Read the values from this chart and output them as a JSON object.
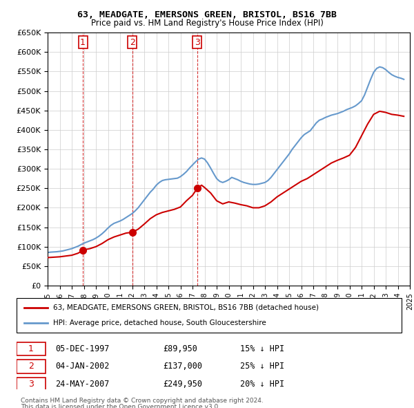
{
  "title": "63, MEADGATE, EMERSONS GREEN, BRISTOL, BS16 7BB",
  "subtitle": "Price paid vs. HM Land Registry's House Price Index (HPI)",
  "legend_line1": "63, MEADGATE, EMERSONS GREEN, BRISTOL, BS16 7BB (detached house)",
  "legend_line2": "HPI: Average price, detached house, South Gloucestershire",
  "footer1": "Contains HM Land Registry data © Crown copyright and database right 2024.",
  "footer2": "This data is licensed under the Open Government Licence v3.0.",
  "transactions": [
    {
      "num": 1,
      "date": "05-DEC-1997",
      "price": 89950,
      "pct": "15%",
      "year": 1997.92
    },
    {
      "num": 2,
      "date": "04-JAN-2002",
      "price": 137000,
      "pct": "25%",
      "year": 2002.01
    },
    {
      "num": 3,
      "date": "24-MAY-2007",
      "price": 249950,
      "pct": "20%",
      "year": 2007.39
    }
  ],
  "hpi_years": [
    1995.0,
    1995.25,
    1995.5,
    1995.75,
    1996.0,
    1996.25,
    1996.5,
    1996.75,
    1997.0,
    1997.25,
    1997.5,
    1997.75,
    1998.0,
    1998.25,
    1998.5,
    1998.75,
    1999.0,
    1999.25,
    1999.5,
    1999.75,
    2000.0,
    2000.25,
    2000.5,
    2000.75,
    2001.0,
    2001.25,
    2001.5,
    2001.75,
    2002.0,
    2002.25,
    2002.5,
    2002.75,
    2003.0,
    2003.25,
    2003.5,
    2003.75,
    2004.0,
    2004.25,
    2004.5,
    2004.75,
    2005.0,
    2005.25,
    2005.5,
    2005.75,
    2006.0,
    2006.25,
    2006.5,
    2006.75,
    2007.0,
    2007.25,
    2007.5,
    2007.75,
    2008.0,
    2008.25,
    2008.5,
    2008.75,
    2009.0,
    2009.25,
    2009.5,
    2009.75,
    2010.0,
    2010.25,
    2010.5,
    2010.75,
    2011.0,
    2011.25,
    2011.5,
    2011.75,
    2012.0,
    2012.25,
    2012.5,
    2012.75,
    2013.0,
    2013.25,
    2013.5,
    2013.75,
    2014.0,
    2014.25,
    2014.5,
    2014.75,
    2015.0,
    2015.25,
    2015.5,
    2015.75,
    2016.0,
    2016.25,
    2016.5,
    2016.75,
    2017.0,
    2017.25,
    2017.5,
    2017.75,
    2018.0,
    2018.25,
    2018.5,
    2018.75,
    2019.0,
    2019.25,
    2019.5,
    2019.75,
    2020.0,
    2020.25,
    2020.5,
    2020.75,
    2021.0,
    2021.25,
    2021.5,
    2021.75,
    2022.0,
    2022.25,
    2022.5,
    2022.75,
    2023.0,
    2023.25,
    2023.5,
    2023.75,
    2024.0,
    2024.25,
    2024.5
  ],
  "hpi_values": [
    85000,
    86000,
    86500,
    87000,
    88000,
    89000,
    91000,
    93000,
    95000,
    98000,
    101000,
    105000,
    109000,
    112000,
    115000,
    118000,
    122000,
    127000,
    133000,
    140000,
    148000,
    155000,
    160000,
    163000,
    166000,
    170000,
    175000,
    180000,
    185000,
    192000,
    200000,
    210000,
    220000,
    230000,
    240000,
    248000,
    258000,
    265000,
    270000,
    272000,
    273000,
    274000,
    275000,
    276000,
    280000,
    286000,
    293000,
    302000,
    310000,
    318000,
    325000,
    328000,
    325000,
    315000,
    302000,
    288000,
    275000,
    268000,
    265000,
    268000,
    272000,
    278000,
    275000,
    272000,
    268000,
    265000,
    263000,
    261000,
    260000,
    260000,
    261000,
    263000,
    265000,
    270000,
    278000,
    288000,
    298000,
    308000,
    318000,
    328000,
    338000,
    350000,
    360000,
    370000,
    380000,
    388000,
    393000,
    398000,
    408000,
    418000,
    425000,
    428000,
    432000,
    435000,
    438000,
    440000,
    442000,
    445000,
    448000,
    452000,
    455000,
    458000,
    462000,
    468000,
    475000,
    490000,
    510000,
    530000,
    548000,
    558000,
    562000,
    560000,
    555000,
    548000,
    542000,
    538000,
    535000,
    533000,
    530000
  ],
  "price_years": [
    1995.0,
    1995.5,
    1996.0,
    1996.5,
    1997.0,
    1997.5,
    1997.92,
    1998.0,
    1998.5,
    1999.0,
    1999.5,
    2000.0,
    2000.5,
    2001.0,
    2001.5,
    2002.01,
    2002.5,
    2003.0,
    2003.5,
    2004.0,
    2004.5,
    2005.0,
    2005.5,
    2006.0,
    2006.5,
    2007.0,
    2007.39,
    2007.75,
    2008.0,
    2008.5,
    2009.0,
    2009.5,
    2010.0,
    2010.5,
    2011.0,
    2011.5,
    2012.0,
    2012.5,
    2013.0,
    2013.5,
    2014.0,
    2014.5,
    2015.0,
    2015.5,
    2016.0,
    2016.5,
    2017.0,
    2017.5,
    2018.0,
    2018.5,
    2019.0,
    2019.5,
    2020.0,
    2020.5,
    2021.0,
    2021.5,
    2022.0,
    2022.5,
    2023.0,
    2023.5,
    2024.0,
    2024.5
  ],
  "price_values": [
    72000,
    73000,
    74000,
    76000,
    78000,
    83000,
    89950,
    92000,
    95000,
    100000,
    108000,
    118000,
    125000,
    130000,
    135000,
    137000,
    145000,
    158000,
    172000,
    182000,
    188000,
    192000,
    196000,
    202000,
    218000,
    232000,
    249950,
    258000,
    252000,
    238000,
    218000,
    210000,
    215000,
    212000,
    208000,
    205000,
    200000,
    200000,
    205000,
    215000,
    228000,
    238000,
    248000,
    258000,
    268000,
    275000,
    285000,
    295000,
    305000,
    315000,
    322000,
    328000,
    335000,
    355000,
    385000,
    415000,
    440000,
    448000,
    445000,
    440000,
    438000,
    435000
  ],
  "transaction_color": "#cc0000",
  "hpi_color": "#6699cc",
  "price_color": "#cc0000",
  "dashed_line_color": "#cc0000",
  "marker_box_color": "#cc0000",
  "ylim": [
    0,
    650000
  ],
  "xlim": [
    1995,
    2025
  ],
  "yticks": [
    0,
    50000,
    100000,
    150000,
    200000,
    250000,
    300000,
    350000,
    400000,
    450000,
    500000,
    550000,
    600000,
    650000
  ],
  "xticks": [
    1995,
    1996,
    1997,
    1998,
    1999,
    2000,
    2001,
    2002,
    2003,
    2004,
    2005,
    2006,
    2007,
    2008,
    2009,
    2010,
    2011,
    2012,
    2013,
    2014,
    2015,
    2016,
    2017,
    2018,
    2019,
    2020,
    2021,
    2022,
    2023,
    2024,
    2025
  ],
  "background_color": "#ffffff",
  "grid_color": "#cccccc"
}
